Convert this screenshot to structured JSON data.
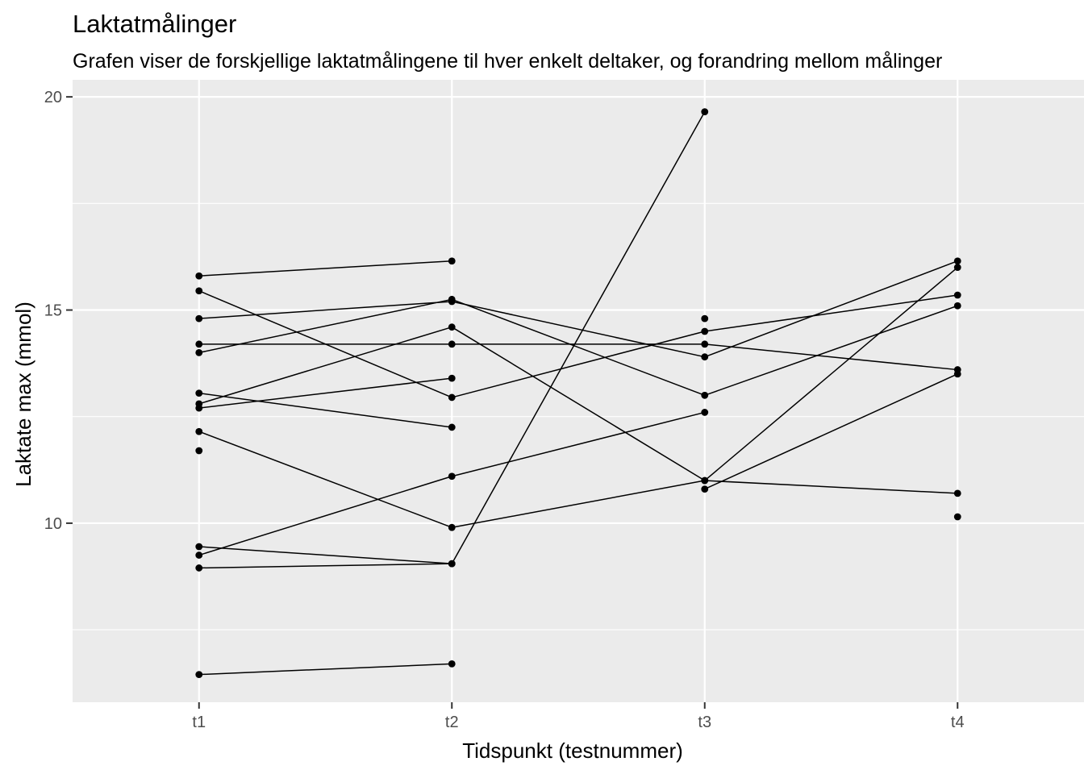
{
  "chart_data": {
    "type": "line",
    "title": "Laktatmålinger",
    "subtitle": "Grafen viser de forskjellige laktatmålingene til hver enkelt deltaker, og forandring mellom målinger",
    "xlabel": "Tidspunkt (testnummer)",
    "ylabel": "Laktate max (mmol)",
    "categories": [
      "t1",
      "t2",
      "t3",
      "t4"
    ],
    "ylim": [
      5.8,
      20.4
    ],
    "yticks": [
      10,
      15,
      20
    ],
    "grid": true,
    "legend": "none",
    "series": [
      {
        "values": [
          15.8,
          16.15,
          null,
          null
        ]
      },
      {
        "values": [
          15.45,
          12.95,
          14.5,
          15.35
        ]
      },
      {
        "values": [
          14.8,
          15.2,
          13.9,
          16.15
        ]
      },
      {
        "values": [
          14.2,
          14.2,
          14.2,
          13.6
        ]
      },
      {
        "values": [
          14.0,
          15.25,
          13.0,
          15.1
        ]
      },
      {
        "values": [
          13.05,
          12.25,
          null,
          null
        ]
      },
      {
        "values": [
          12.8,
          14.6,
          11.0,
          16.0
        ]
      },
      {
        "values": [
          12.7,
          13.4,
          null,
          null
        ]
      },
      {
        "values": [
          12.15,
          9.9,
          11.0,
          10.7
        ]
      },
      {
        "values": [
          11.7,
          null,
          null,
          null
        ]
      },
      {
        "values": [
          9.45,
          9.05,
          19.65,
          null
        ]
      },
      {
        "values": [
          9.25,
          11.1,
          12.6,
          null
        ]
      },
      {
        "values": [
          8.95,
          9.05,
          null,
          null
        ]
      },
      {
        "values": [
          6.45,
          6.7,
          null,
          null
        ]
      },
      {
        "values": [
          null,
          null,
          14.8,
          null
        ]
      },
      {
        "values": [
          null,
          null,
          10.8,
          13.5
        ]
      },
      {
        "values": [
          null,
          null,
          null,
          10.15
        ]
      }
    ]
  }
}
